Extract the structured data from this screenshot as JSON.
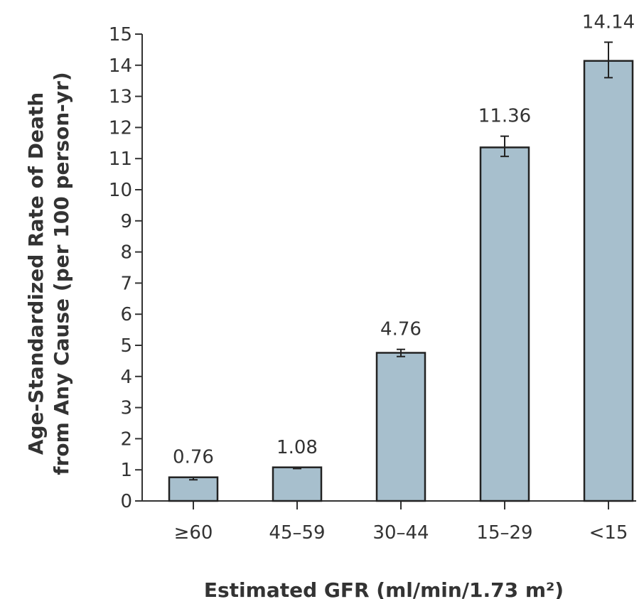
{
  "chart_data": {
    "type": "bar",
    "categories": [
      "≥60",
      "45–59",
      "30–44",
      "15–29",
      "<15"
    ],
    "values": [
      0.76,
      1.08,
      4.76,
      11.36,
      14.14
    ],
    "error_bars": [
      {
        "low": 0.68,
        "high": 0.76
      },
      {
        "low": 1.04,
        "high": 1.07
      },
      {
        "low": 4.64,
        "high": 4.87
      },
      {
        "low": 11.07,
        "high": 11.72
      },
      {
        "low": 13.6,
        "high": 14.74
      }
    ],
    "value_labels": [
      "0.76",
      "1.08",
      "4.76",
      "11.36",
      "14.14"
    ],
    "ylabel_line1": "Age-Standardized Rate of Death",
    "ylabel_line2": "from Any Cause (per 100 person-yr)",
    "xlabel": "Estimated GFR (ml/min/1.73 m²)",
    "ylim": [
      0,
      15
    ],
    "yticks": [
      0,
      1,
      2,
      3,
      4,
      5,
      6,
      7,
      8,
      9,
      10,
      11,
      12,
      13,
      14,
      15
    ],
    "grid": false,
    "colors": {
      "bar_fill": "#a7bfcd",
      "bar_stroke": "#222222",
      "axis": "#333333",
      "text": "#333333"
    }
  }
}
